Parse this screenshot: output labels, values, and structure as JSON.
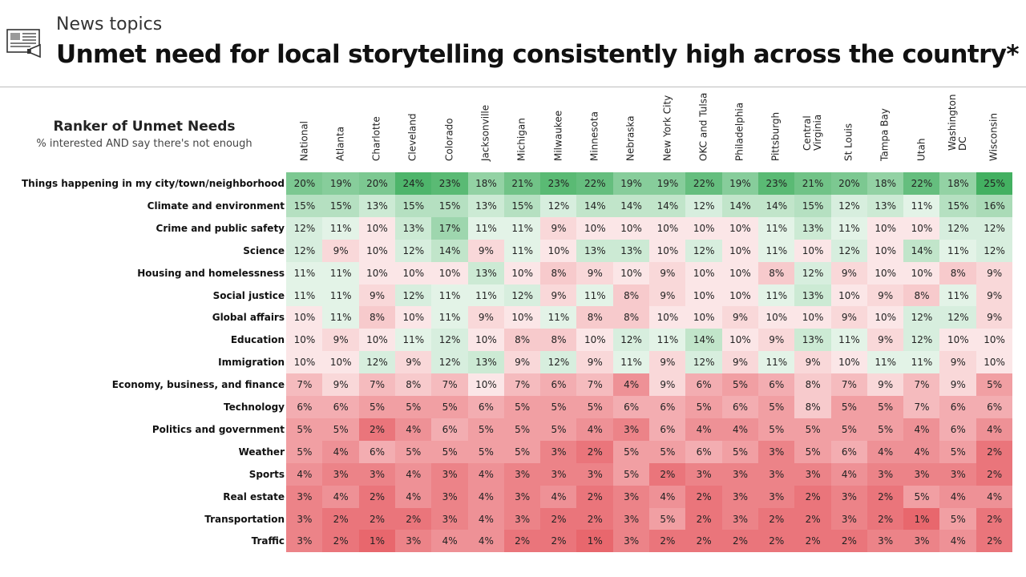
{
  "header": {
    "kicker": "News topics",
    "title": "Unmet need for local storytelling consistently high across the country*"
  },
  "table_caption": {
    "title": "Ranker of Unmet Needs",
    "subtitle": "% interested AND say there's not enough"
  },
  "colors": {
    "high": "#43b061",
    "mid": "#ffffff",
    "low": "#e8676d"
  },
  "chart_data": {
    "type": "heatmap",
    "columns": [
      "National",
      "Atlanta",
      "Charlotte",
      "Cleveland",
      "Colorado",
      "Jacksonville",
      "Michigan",
      "Milwaukee",
      "Minnesota",
      "Nebraska",
      "New York City",
      "OKC and Tulsa",
      "Philadelphia",
      "Pittsburgh",
      "Central Virginia",
      "St Louis",
      "Tampa Bay",
      "Utah",
      "Washington DC",
      "Wisconsin"
    ],
    "rows": [
      {
        "label": "Things happening in my city/town/neighborhood",
        "values": [
          20,
          19,
          20,
          24,
          23,
          18,
          21,
          23,
          22,
          19,
          19,
          22,
          19,
          23,
          21,
          20,
          18,
          22,
          18,
          25
        ]
      },
      {
        "label": "Climate and environment",
        "values": [
          15,
          15,
          13,
          15,
          15,
          13,
          15,
          12,
          14,
          14,
          14,
          12,
          14,
          14,
          15,
          12,
          13,
          11,
          15,
          16
        ]
      },
      {
        "label": "Crime and public safety",
        "values": [
          12,
          11,
          10,
          13,
          17,
          11,
          11,
          9,
          10,
          10,
          10,
          10,
          10,
          11,
          13,
          11,
          10,
          10,
          12,
          12
        ]
      },
      {
        "label": "Science",
        "values": [
          12,
          9,
          10,
          12,
          14,
          9,
          11,
          10,
          13,
          13,
          10,
          12,
          10,
          11,
          10,
          12,
          10,
          14,
          11,
          12
        ]
      },
      {
        "label": "Housing and homelessness",
        "values": [
          11,
          11,
          10,
          10,
          10,
          13,
          10,
          8,
          9,
          10,
          9,
          10,
          10,
          8,
          12,
          9,
          10,
          10,
          8,
          9
        ]
      },
      {
        "label": "Social justice",
        "values": [
          11,
          11,
          9,
          12,
          11,
          11,
          12,
          9,
          11,
          8,
          9,
          10,
          10,
          11,
          13,
          10,
          9,
          8,
          11,
          9
        ]
      },
      {
        "label": "Global affairs",
        "values": [
          10,
          11,
          8,
          10,
          11,
          9,
          10,
          11,
          8,
          8,
          10,
          10,
          9,
          10,
          10,
          9,
          10,
          12,
          12,
          9
        ]
      },
      {
        "label": "Education",
        "values": [
          10,
          9,
          10,
          11,
          12,
          10,
          8,
          8,
          10,
          12,
          11,
          14,
          10,
          9,
          13,
          11,
          9,
          12,
          10,
          10
        ]
      },
      {
        "label": "Immigration",
        "values": [
          10,
          10,
          12,
          9,
          12,
          13,
          9,
          12,
          9,
          11,
          9,
          12,
          9,
          11,
          9,
          10,
          11,
          11,
          9,
          10
        ]
      },
      {
        "label": "Economy, business, and finance",
        "values": [
          7,
          9,
          7,
          8,
          7,
          10,
          7,
          6,
          7,
          4,
          9,
          6,
          5,
          6,
          8,
          7,
          9,
          7,
          9,
          5
        ]
      },
      {
        "label": "Technology",
        "values": [
          6,
          6,
          5,
          5,
          5,
          6,
          5,
          5,
          5,
          6,
          6,
          5,
          6,
          5,
          8,
          5,
          5,
          7,
          6,
          6
        ]
      },
      {
        "label": "Politics and government",
        "values": [
          5,
          5,
          2,
          4,
          6,
          5,
          5,
          5,
          4,
          3,
          6,
          4,
          4,
          5,
          5,
          5,
          5,
          4,
          6,
          4
        ]
      },
      {
        "label": "Weather",
        "values": [
          5,
          4,
          6,
          5,
          5,
          5,
          5,
          3,
          2,
          5,
          5,
          6,
          5,
          3,
          5,
          6,
          4,
          4,
          5,
          2
        ]
      },
      {
        "label": "Sports",
        "values": [
          4,
          3,
          3,
          4,
          3,
          4,
          3,
          3,
          3,
          5,
          2,
          3,
          3,
          3,
          3,
          4,
          3,
          3,
          3,
          2
        ]
      },
      {
        "label": "Real estate",
        "values": [
          3,
          4,
          2,
          4,
          3,
          4,
          3,
          4,
          2,
          3,
          4,
          2,
          3,
          3,
          2,
          3,
          2,
          5,
          4,
          4
        ]
      },
      {
        "label": "Transportation",
        "values": [
          3,
          2,
          2,
          2,
          3,
          4,
          3,
          2,
          2,
          3,
          5,
          2,
          3,
          2,
          2,
          3,
          2,
          1,
          5,
          2
        ]
      },
      {
        "label": "Traffic",
        "values": [
          3,
          2,
          1,
          3,
          4,
          4,
          2,
          2,
          1,
          3,
          2,
          2,
          2,
          2,
          2,
          2,
          3,
          3,
          4,
          2
        ]
      }
    ],
    "value_suffix": "%"
  }
}
